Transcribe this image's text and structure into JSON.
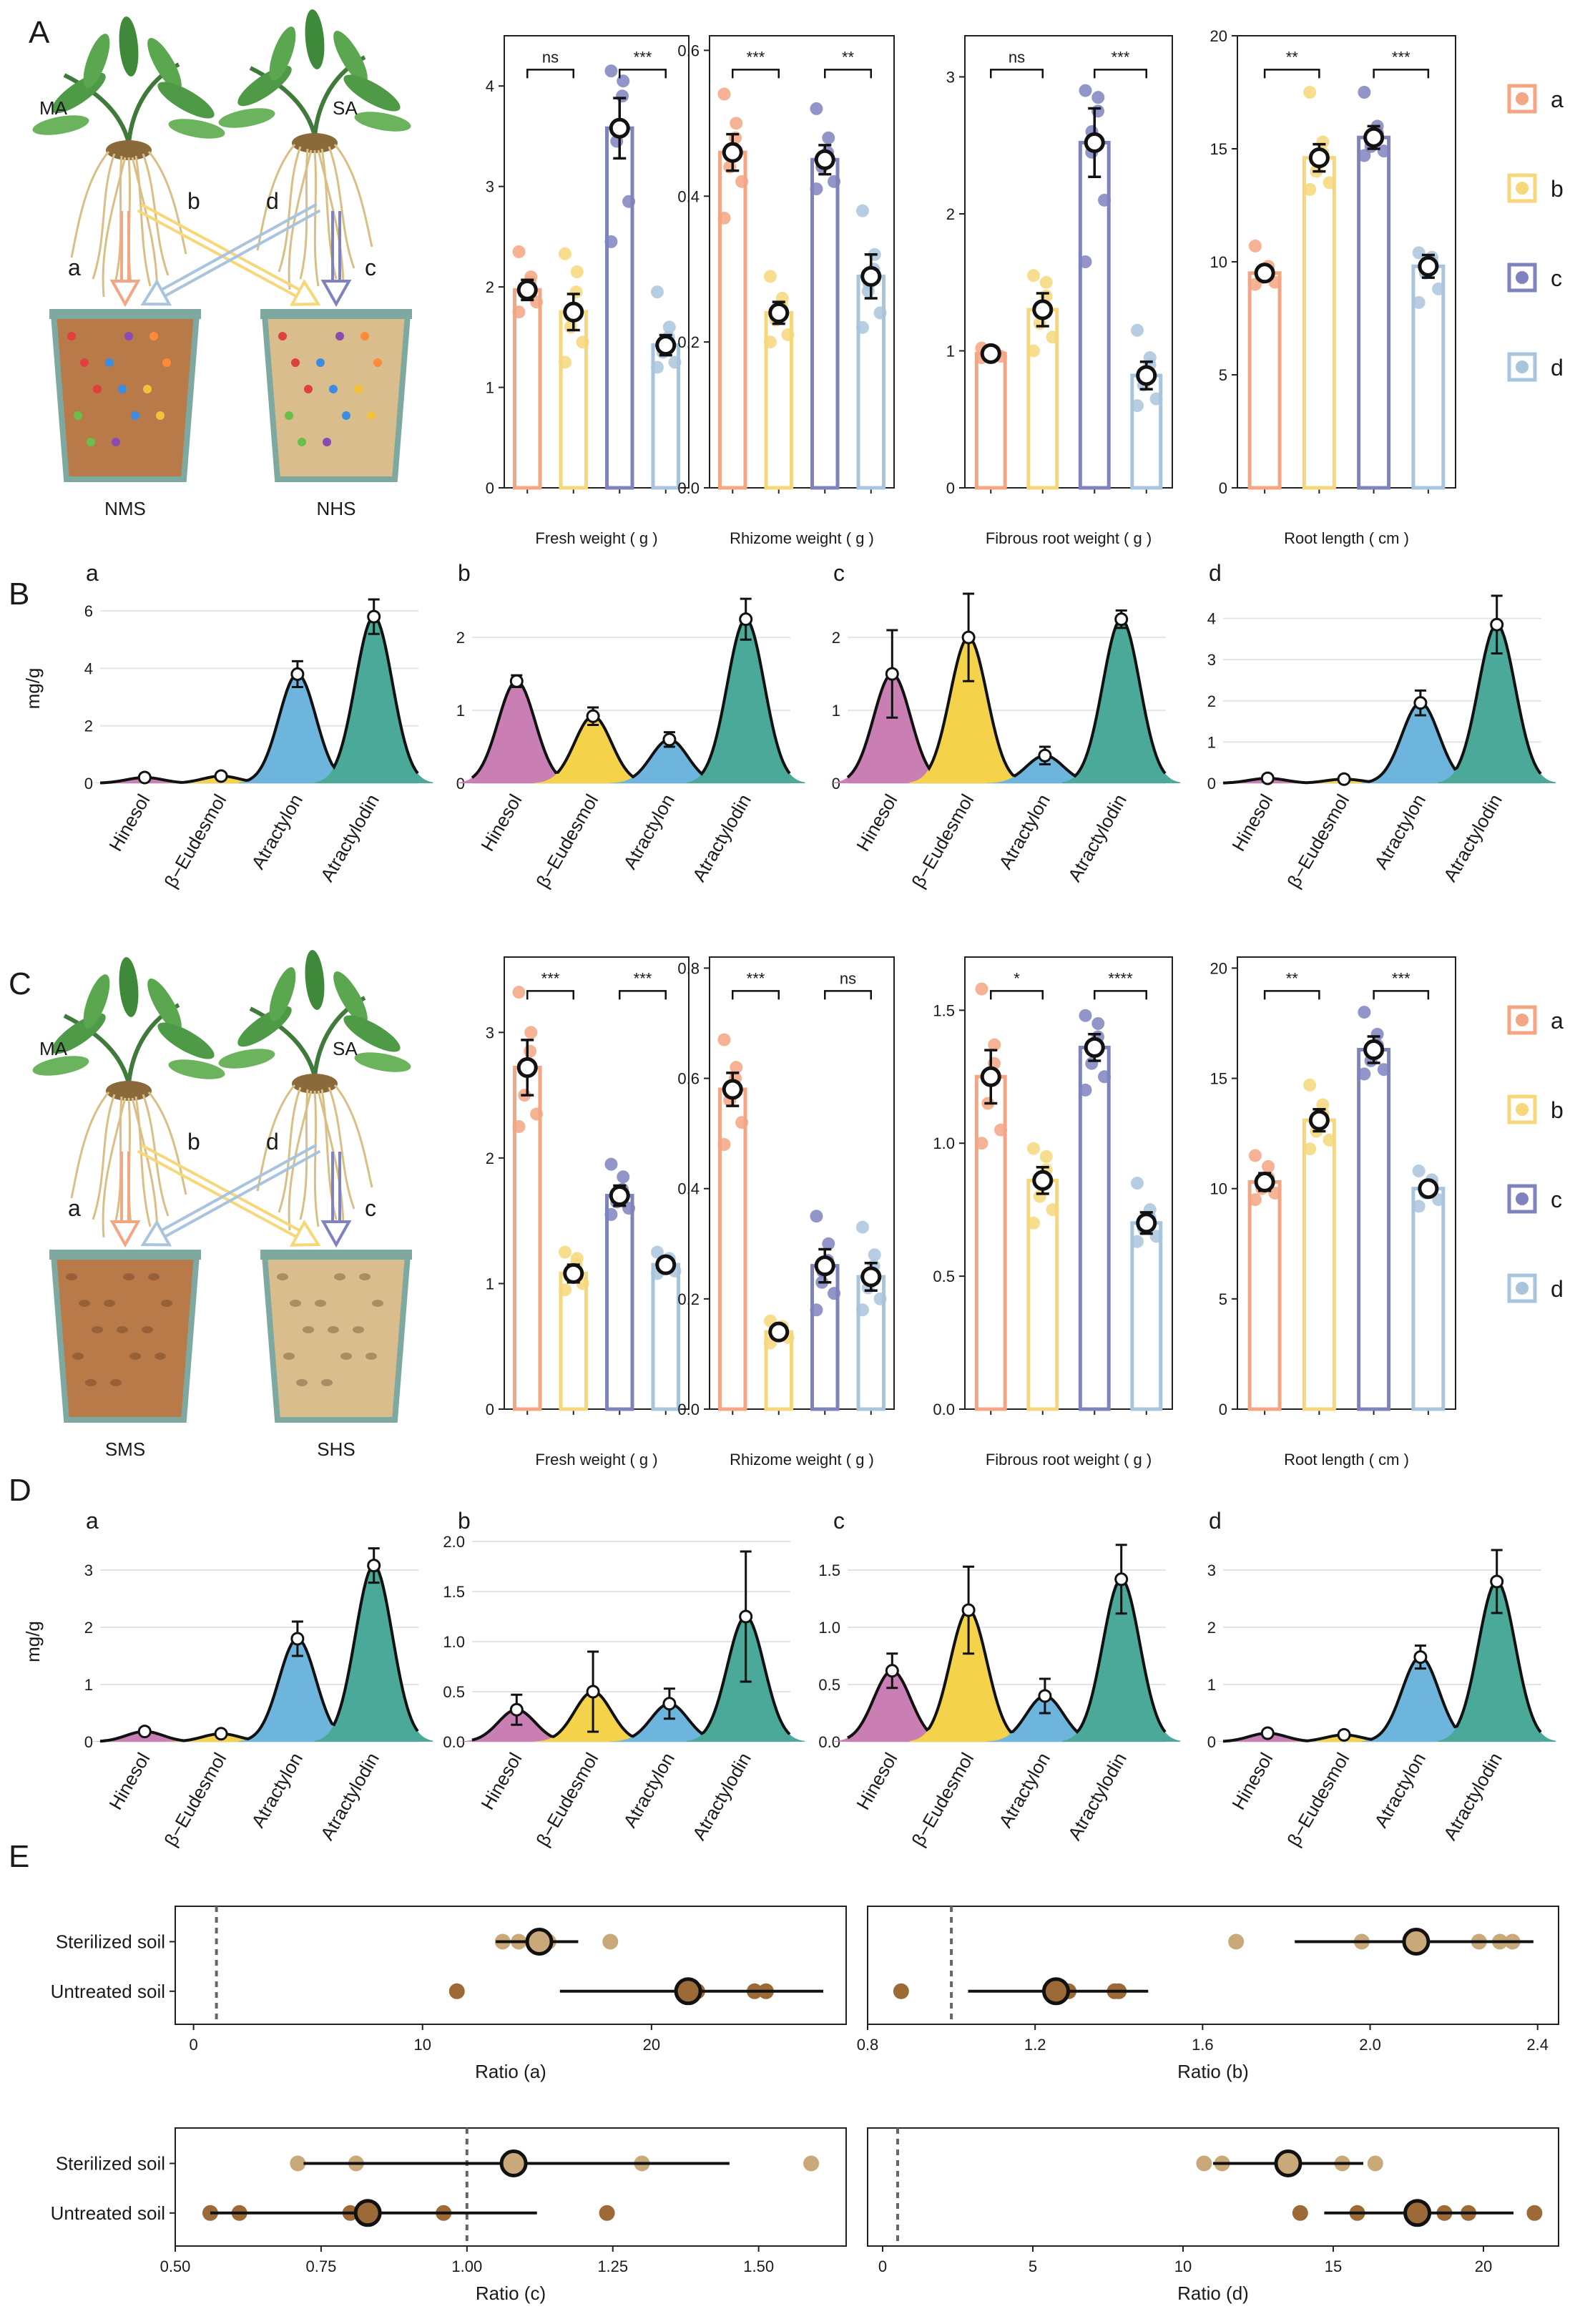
{
  "panels": {
    "A": "A",
    "B": "B",
    "C": "C",
    "D": "D",
    "E": "E"
  },
  "colors": {
    "a": "#f4a582",
    "b": "#f6d77a",
    "c": "#7f83bd",
    "d": "#a9c4dd",
    "pink": "#c97fb3",
    "yellow": "#f4d24a",
    "blue": "#6eb5dd",
    "green": "#4aa998",
    "soilN": "#b97a4a",
    "soilH": "#d9bd8c",
    "pot": "#7ea9a0",
    "light": "#c9a97a",
    "dark": "#9b6a36"
  },
  "diagramA": {
    "MA": "MA",
    "SA": "SA",
    "a": "a",
    "b": "b",
    "c": "c",
    "d": "d",
    "potL": "NMS",
    "potR": "NHS"
  },
  "diagramC": {
    "MA": "MA",
    "SA": "SA",
    "a": "a",
    "b": "b",
    "c": "c",
    "d": "d",
    "potL": "SMS",
    "potR": "SHS"
  },
  "legend": [
    "a",
    "b",
    "c",
    "d"
  ],
  "chart_data": [
    {
      "type": "bar",
      "id": "A1",
      "xlabel": "Fresh weight ( g )",
      "categories": [
        "a",
        "b",
        "c",
        "d"
      ],
      "values": [
        1.97,
        1.75,
        3.58,
        1.42
      ],
      "errors": [
        0.1,
        0.18,
        0.3,
        0.1
      ],
      "points": [
        [
          2.35,
          2.1,
          2.05,
          2.0,
          1.95,
          1.85,
          1.75
        ],
        [
          2.33,
          2.15,
          1.95,
          1.7,
          1.6,
          1.45,
          1.25
        ],
        [
          4.15,
          4.05,
          3.9,
          3.6,
          3.45,
          2.85,
          2.45
        ],
        [
          1.95,
          1.6,
          1.5,
          1.4,
          1.35,
          1.25,
          1.2
        ]
      ],
      "ylim": [
        0,
        4.5
      ],
      "yticks": [
        0,
        1,
        2,
        3,
        4
      ],
      "sig": [
        [
          "ns",
          0,
          1
        ],
        [
          "***",
          2,
          3
        ]
      ]
    },
    {
      "type": "bar",
      "id": "A2",
      "xlabel": "Rhizome weight ( g )",
      "categories": [
        "a",
        "b",
        "c",
        "d"
      ],
      "values": [
        0.46,
        0.24,
        0.45,
        0.29
      ],
      "errors": [
        0.025,
        0.015,
        0.02,
        0.03
      ],
      "points": [
        [
          0.54,
          0.5,
          0.48,
          0.46,
          0.44,
          0.42,
          0.37
        ],
        [
          0.29,
          0.26,
          0.25,
          0.24,
          0.23,
          0.21,
          0.2
        ],
        [
          0.52,
          0.48,
          0.46,
          0.45,
          0.44,
          0.42,
          0.41
        ],
        [
          0.38,
          0.32,
          0.3,
          0.28,
          0.27,
          0.24,
          0.22
        ]
      ],
      "ylim": [
        0,
        0.62
      ],
      "yticks": [
        0,
        0.2,
        0.4,
        0.6
      ],
      "sig": [
        [
          "***",
          0,
          1
        ],
        [
          "**",
          2,
          3
        ]
      ]
    },
    {
      "type": "bar",
      "id": "A3",
      "xlabel": "Fibrous root weight ( g )",
      "categories": [
        "a",
        "b",
        "c",
        "d"
      ],
      "values": [
        0.98,
        1.3,
        2.52,
        0.82
      ],
      "errors": [
        0.03,
        0.12,
        0.25,
        0.1
      ],
      "points": [
        [
          1.02,
          1.0,
          0.99,
          0.98,
          0.97,
          0.96,
          0.95
        ],
        [
          1.55,
          1.5,
          1.4,
          1.3,
          1.2,
          1.1,
          1.0
        ],
        [
          2.9,
          2.85,
          2.75,
          2.6,
          2.45,
          2.1,
          1.65
        ],
        [
          1.15,
          0.95,
          0.9,
          0.8,
          0.75,
          0.65,
          0.6
        ]
      ],
      "ylim": [
        0,
        3.3
      ],
      "yticks": [
        0,
        1,
        2,
        3
      ],
      "sig": [
        [
          "ns",
          0,
          1
        ],
        [
          "***",
          2,
          3
        ]
      ]
    },
    {
      "type": "bar",
      "id": "A4",
      "xlabel": "Root length ( cm )",
      "categories": [
        "a",
        "b",
        "c",
        "d"
      ],
      "values": [
        9.5,
        14.6,
        15.5,
        9.8
      ],
      "errors": [
        0.3,
        0.6,
        0.5,
        0.5
      ],
      "points": [
        [
          10.7,
          9.8,
          9.6,
          9.5,
          9.3,
          9.1,
          9.0
        ],
        [
          17.5,
          15.3,
          14.8,
          14.5,
          14.0,
          13.5,
          13.2
        ],
        [
          17.5,
          16.0,
          15.7,
          15.4,
          15.1,
          14.9,
          14.7
        ],
        [
          10.4,
          10.2,
          10.0,
          9.8,
          9.5,
          8.8,
          8.2
        ]
      ],
      "ylim": [
        0,
        20
      ],
      "yticks": [
        0,
        5,
        10,
        15,
        20
      ],
      "sig": [
        [
          "**",
          0,
          1
        ],
        [
          "***",
          2,
          3
        ]
      ]
    },
    {
      "type": "area",
      "id": "B1",
      "sub": "a",
      "ylabel": "mg/g",
      "categories": [
        "Hinesol",
        "β−Eudesmol",
        "Atractylon",
        "Atractylodin"
      ],
      "values": [
        0.2,
        0.25,
        3.8,
        5.8
      ],
      "errors": [
        0.03,
        0.03,
        0.45,
        0.6
      ],
      "ylim": [
        0,
        6.6
      ],
      "yticks": [
        0,
        2,
        4,
        6
      ]
    },
    {
      "type": "area",
      "id": "B2",
      "sub": "b",
      "categories": [
        "Hinesol",
        "β−Eudesmol",
        "Atractylon",
        "Atractylodin"
      ],
      "values": [
        1.4,
        0.92,
        0.6,
        2.25
      ],
      "errors": [
        0.08,
        0.12,
        0.1,
        0.28
      ],
      "ylim": [
        0,
        2.6
      ],
      "yticks": [
        0,
        1,
        2
      ]
    },
    {
      "type": "area",
      "id": "B3",
      "sub": "c",
      "categories": [
        "Hinesol",
        "β−Eudesmol",
        "Atractylon",
        "Atractylodin"
      ],
      "values": [
        1.5,
        2.0,
        0.38,
        2.25
      ],
      "errors": [
        0.6,
        0.6,
        0.12,
        0.12
      ],
      "ylim": [
        0,
        2.6
      ],
      "yticks": [
        0,
        1,
        2
      ]
    },
    {
      "type": "area",
      "id": "B4",
      "sub": "d",
      "categories": [
        "Hinesol",
        "β−Eudesmol",
        "Atractylon",
        "Atractylodin"
      ],
      "values": [
        0.12,
        0.1,
        1.95,
        3.85
      ],
      "errors": [
        0.02,
        0.02,
        0.3,
        0.7
      ],
      "ylim": [
        0,
        4.6
      ],
      "yticks": [
        0,
        1,
        2,
        3,
        4
      ]
    },
    {
      "type": "bar",
      "id": "C1",
      "xlabel": "Fresh weight ( g )",
      "categories": [
        "a",
        "b",
        "c",
        "d"
      ],
      "values": [
        2.72,
        1.08,
        1.7,
        1.15
      ],
      "errors": [
        0.22,
        0.07,
        0.08,
        0.04
      ],
      "points": [
        [
          3.32,
          3.0,
          2.85,
          2.7,
          2.5,
          2.35,
          2.25
        ],
        [
          1.25,
          1.2,
          1.15,
          1.1,
          1.05,
          1.0,
          0.95
        ],
        [
          1.95,
          1.85,
          1.75,
          1.7,
          1.65,
          1.6,
          1.55
        ],
        [
          1.25,
          1.2,
          1.18,
          1.15,
          1.12,
          1.1,
          1.08
        ]
      ],
      "ylim": [
        0,
        3.6
      ],
      "yticks": [
        0,
        1,
        2,
        3
      ],
      "sig": [
        [
          "***",
          0,
          1
        ],
        [
          "***",
          2,
          3
        ]
      ]
    },
    {
      "type": "bar",
      "id": "C2",
      "xlabel": "Rhizome weight ( g )",
      "categories": [
        "a",
        "b",
        "c",
        "d"
      ],
      "values": [
        0.58,
        0.14,
        0.26,
        0.24
      ],
      "errors": [
        0.03,
        0.012,
        0.03,
        0.025
      ],
      "points": [
        [
          0.67,
          0.62,
          0.6,
          0.58,
          0.56,
          0.52,
          0.48
        ],
        [
          0.16,
          0.15,
          0.145,
          0.14,
          0.135,
          0.13,
          0.12
        ],
        [
          0.35,
          0.3,
          0.27,
          0.25,
          0.23,
          0.21,
          0.18
        ],
        [
          0.33,
          0.28,
          0.26,
          0.24,
          0.22,
          0.2,
          0.18
        ]
      ],
      "ylim": [
        0,
        0.82
      ],
      "yticks": [
        0,
        0.2,
        0.4,
        0.6,
        0.8
      ],
      "sig": [
        [
          "***",
          0,
          1
        ],
        [
          "ns",
          2,
          3
        ]
      ]
    },
    {
      "type": "bar",
      "id": "C3",
      "xlabel": "Fibrous root weight ( g )",
      "categories": [
        "a",
        "b",
        "c",
        "d"
      ],
      "values": [
        1.25,
        0.86,
        1.36,
        0.7
      ],
      "errors": [
        0.1,
        0.05,
        0.05,
        0.04
      ],
      "points": [
        [
          1.58,
          1.37,
          1.3,
          1.25,
          1.15,
          1.05,
          1.0
        ],
        [
          0.98,
          0.95,
          0.9,
          0.85,
          0.8,
          0.75,
          0.7
        ],
        [
          1.48,
          1.45,
          1.4,
          1.35,
          1.3,
          1.25,
          1.2
        ],
        [
          0.85,
          0.75,
          0.72,
          0.7,
          0.68,
          0.65,
          0.63
        ]
      ],
      "ylim": [
        0,
        1.7
      ],
      "yticks": [
        0,
        0.5,
        1.0,
        1.5
      ],
      "sig": [
        [
          "*",
          0,
          1
        ],
        [
          "****",
          2,
          3
        ]
      ]
    },
    {
      "type": "bar",
      "id": "C4",
      "xlabel": "Root length ( cm )",
      "categories": [
        "a",
        "b",
        "c",
        "d"
      ],
      "values": [
        10.3,
        13.1,
        16.3,
        10.0
      ],
      "errors": [
        0.4,
        0.5,
        0.6,
        0.3
      ],
      "points": [
        [
          11.5,
          11.0,
          10.5,
          10.2,
          10.0,
          9.8,
          9.5
        ],
        [
          14.7,
          13.8,
          13.4,
          13.0,
          12.6,
          12.2,
          11.8
        ],
        [
          18.0,
          17.0,
          16.5,
          16.2,
          15.8,
          15.4,
          15.2
        ],
        [
          10.8,
          10.4,
          10.2,
          10.0,
          9.8,
          9.5,
          9.2
        ]
      ],
      "ylim": [
        0,
        20.5
      ],
      "yticks": [
        0,
        5,
        10,
        15,
        20
      ],
      "sig": [
        [
          "**",
          0,
          1
        ],
        [
          "***",
          2,
          3
        ]
      ]
    },
    {
      "type": "area",
      "id": "D1",
      "sub": "a",
      "ylabel": "mg/g",
      "categories": [
        "Hinesol",
        "β−Eudesmol",
        "Atractylon",
        "Atractylodin"
      ],
      "values": [
        0.18,
        0.14,
        1.8,
        3.08
      ],
      "errors": [
        0.02,
        0.02,
        0.3,
        0.3
      ],
      "ylim": [
        0,
        3.5
      ],
      "yticks": [
        0,
        1,
        2,
        3
      ]
    },
    {
      "type": "area",
      "id": "D2",
      "sub": "b",
      "categories": [
        "Hinesol",
        "β−Eudesmol",
        "Atractylon",
        "Atractylodin"
      ],
      "values": [
        0.32,
        0.5,
        0.38,
        1.25
      ],
      "errors": [
        0.15,
        0.4,
        0.15,
        0.65
      ],
      "ylim": [
        0,
        2.0
      ],
      "yticks": [
        0,
        0.5,
        1.0,
        1.5,
        2.0
      ]
    },
    {
      "type": "area",
      "id": "D3",
      "sub": "c",
      "categories": [
        "Hinesol",
        "β−Eudesmol",
        "Atractylon",
        "Atractylodin"
      ],
      "values": [
        0.62,
        1.15,
        0.4,
        1.42
      ],
      "errors": [
        0.15,
        0.38,
        0.15,
        0.3
      ],
      "ylim": [
        0,
        1.75
      ],
      "yticks": [
        0,
        0.5,
        1.0,
        1.5
      ]
    },
    {
      "type": "area",
      "id": "D4",
      "sub": "d",
      "categories": [
        "Hinesol",
        "β−Eudesmol",
        "Atractylon",
        "Atractylodin"
      ],
      "values": [
        0.15,
        0.12,
        1.48,
        2.8
      ],
      "errors": [
        0.02,
        0.02,
        0.2,
        0.55
      ],
      "ylim": [
        0,
        3.5
      ],
      "yticks": [
        0,
        1,
        2,
        3
      ]
    },
    {
      "type": "scatter",
      "id": "E1",
      "xlabel": "Ratio (a)",
      "rows": [
        "Sterilized soil",
        "Untreated soil"
      ],
      "xlim": [
        -0.8,
        28.5
      ],
      "xticks": [
        0,
        10,
        20
      ],
      "ref": 1,
      "mean": [
        15.1,
        21.6
      ],
      "ci": [
        [
          13.2,
          16.8
        ],
        [
          16.0,
          27.5
        ]
      ],
      "points": [
        [
          13.5,
          14.2,
          14.8,
          15.5,
          18.2
        ],
        [
          11.5,
          21.8,
          22.0,
          24.5,
          25.0
        ]
      ]
    },
    {
      "type": "scatter",
      "id": "E2",
      "xlabel": "Ratio (b)",
      "rows": [
        "Sterilized soil",
        "Untreated soil"
      ],
      "xlim": [
        0.8,
        2.45
      ],
      "xticks": [
        0.8,
        1.2,
        1.6,
        2.0,
        2.4
      ],
      "ref": 1.0,
      "mean": [
        2.11,
        1.25
      ],
      "ci": [
        [
          1.82,
          2.39
        ],
        [
          1.04,
          1.47
        ]
      ],
      "points": [
        [
          1.68,
          1.98,
          2.26,
          2.31,
          2.34
        ],
        [
          0.88,
          1.28,
          1.39,
          1.4
        ]
      ]
    },
    {
      "type": "scatter",
      "id": "E3",
      "xlabel": "Ratio (c)",
      "rows": [
        "Sterilized soil",
        "Untreated soil"
      ],
      "xlim": [
        0.5,
        1.65
      ],
      "xticks": [
        0.5,
        0.75,
        1.0,
        1.25,
        1.5
      ],
      "ref": 1.0,
      "mean": [
        1.08,
        0.83
      ],
      "ci": [
        [
          0.72,
          1.45
        ],
        [
          0.56,
          1.12
        ]
      ],
      "points": [
        [
          0.71,
          0.81,
          1.3,
          1.59
        ],
        [
          0.56,
          0.61,
          0.8,
          0.96,
          1.24
        ]
      ]
    },
    {
      "type": "scatter",
      "id": "E4",
      "xlabel": "Ratio (d)",
      "rows": [
        "Sterilized soil",
        "Untreated soil"
      ],
      "xlim": [
        -0.5,
        22.5
      ],
      "xticks": [
        0,
        5,
        10,
        15,
        20
      ],
      "ref": 0.5,
      "mean": [
        13.5,
        17.8
      ],
      "ci": [
        [
          11.0,
          16.0
        ],
        [
          14.7,
          21.0
        ]
      ],
      "points": [
        [
          10.7,
          11.3,
          15.3,
          16.4
        ],
        [
          13.9,
          15.8,
          18.7,
          19.5,
          21.7
        ]
      ]
    }
  ]
}
